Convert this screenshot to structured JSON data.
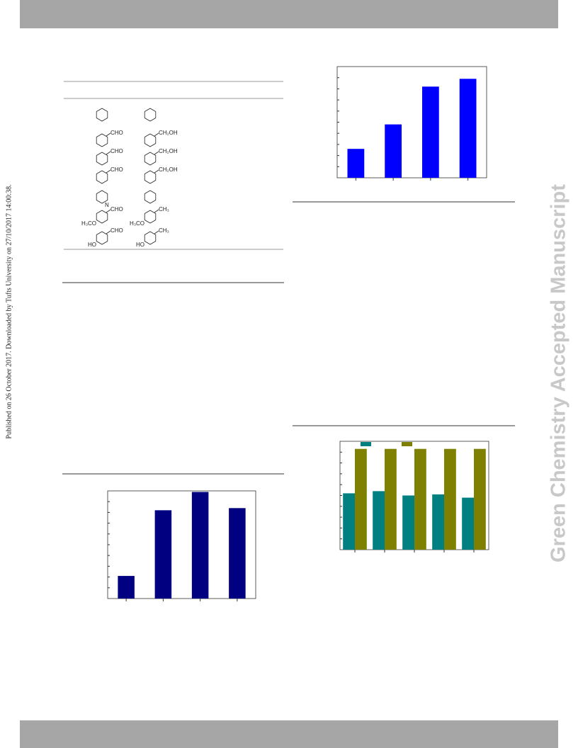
{
  "side_note": "Published on 26 October 2017. Downloaded by Tufts University on 27/10/2017 14:00:38.",
  "watermark": "Green Chemistry Accepted Manuscript",
  "structures": [
    {
      "left": [],
      "right": []
    },
    {
      "left": [
        "CHO"
      ],
      "right": [
        "CH₂OH"
      ]
    },
    {
      "left": [
        "CHO"
      ],
      "right": [
        "CH₂OH"
      ]
    },
    {
      "left": [
        "CHO"
      ],
      "right": [
        "CH₂OH"
      ]
    },
    {
      "left": [
        "N"
      ],
      "right": []
    },
    {
      "left": [
        "H₃CO",
        "CHO"
      ],
      "right": [
        "H₃CO",
        "CH₃"
      ]
    },
    {
      "left": [
        "HO",
        "CHO"
      ],
      "right": [
        "HO",
        "CH₃"
      ]
    }
  ],
  "chart_data": [
    {
      "type": "bar",
      "ylim": [
        0,
        100
      ],
      "series": [
        {
          "color": "#0000ff",
          "values": [
            26,
            48,
            82,
            89
          ]
        }
      ]
    },
    {
      "type": "bar",
      "ylim": [
        0,
        100
      ],
      "series": [
        {
          "color": "#000080",
          "values": [
            21,
            82,
            99,
            84
          ]
        }
      ]
    },
    {
      "type": "bar",
      "ylim": [
        0,
        100
      ],
      "series": [
        {
          "color": "#008080",
          "values": [
            52,
            54,
            50,
            51,
            48
          ]
        },
        {
          "color": "#808000",
          "values": [
            93,
            93,
            93,
            93,
            93
          ]
        }
      ]
    }
  ]
}
